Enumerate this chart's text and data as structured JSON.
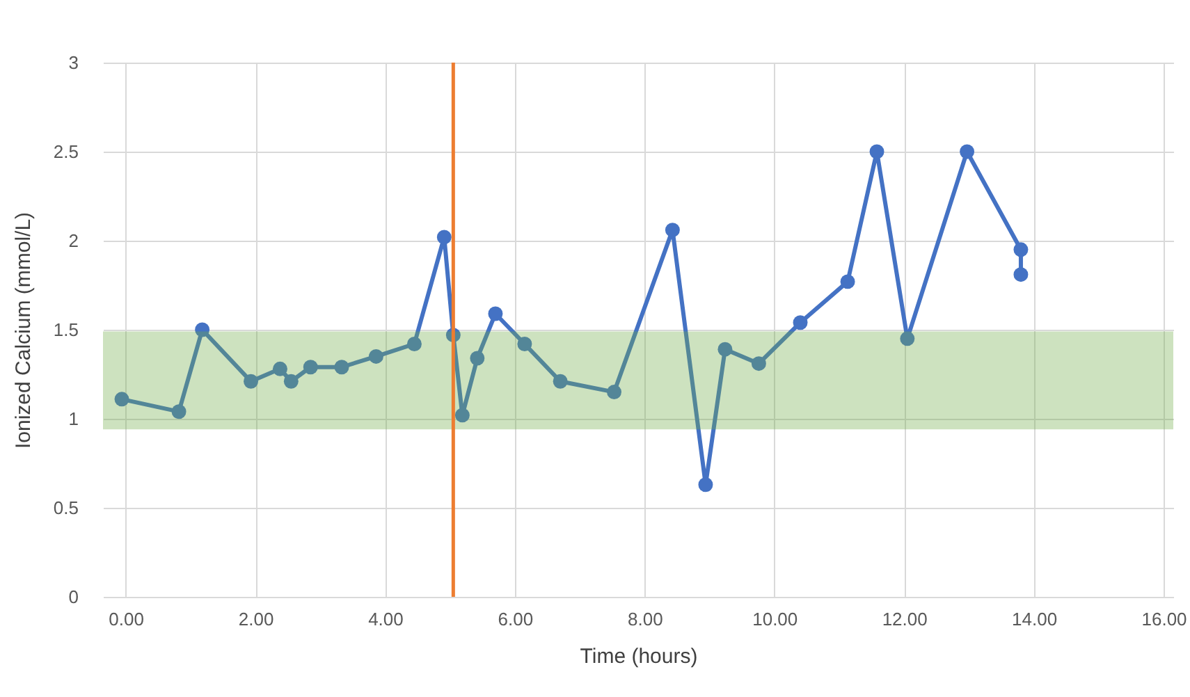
{
  "chart_data": {
    "type": "line",
    "xlabel": "Time (hours)",
    "ylabel": "Ionized Calcium (mmol/L)",
    "x": [
      -0.06,
      0.82,
      1.18,
      1.93,
      2.38,
      2.55,
      2.85,
      3.33,
      3.86,
      4.45,
      4.91,
      5.05,
      5.19,
      5.42,
      5.7,
      6.15,
      6.7,
      7.53,
      8.43,
      8.94,
      9.24,
      9.76,
      10.4,
      11.13,
      11.58,
      12.05,
      12.97,
      13.8,
      13.8
    ],
    "series": [
      {
        "color": "#4472c4",
        "values": [
          1.11,
          1.04,
          1.5,
          1.21,
          1.28,
          1.21,
          1.29,
          1.29,
          1.35,
          1.42,
          2.02,
          1.47,
          1.02,
          1.34,
          1.59,
          1.42,
          1.21,
          1.15,
          2.06,
          0.63,
          1.39,
          1.31,
          1.54,
          1.77,
          2.5,
          1.45,
          2.5,
          1.95,
          1.81
        ]
      }
    ],
    "xlim": [
      -0.35,
      16.15
    ],
    "ylim": [
      0,
      3
    ],
    "xticks": [
      {
        "value": 0,
        "label": "0.00"
      },
      {
        "value": 2,
        "label": "2.00"
      },
      {
        "value": 4,
        "label": "4.00"
      },
      {
        "value": 6,
        "label": "6.00"
      },
      {
        "value": 8,
        "label": "8.00"
      },
      {
        "value": 10,
        "label": "10.00"
      },
      {
        "value": 12,
        "label": "12.00"
      },
      {
        "value": 14,
        "label": "14.00"
      },
      {
        "value": 16,
        "label": "16.00"
      }
    ],
    "yticks": [
      0,
      0.5,
      1,
      1.5,
      2,
      2.5,
      3
    ],
    "ref_lines": [
      {
        "axis": "x",
        "value": 5.05,
        "color": "#ed7d31"
      }
    ],
    "bands": [
      {
        "axis": "y",
        "from": 0.94,
        "to": 1.49,
        "color": "#70ad47"
      }
    ],
    "grid": true,
    "marker": "circle",
    "line_style": "solid"
  }
}
